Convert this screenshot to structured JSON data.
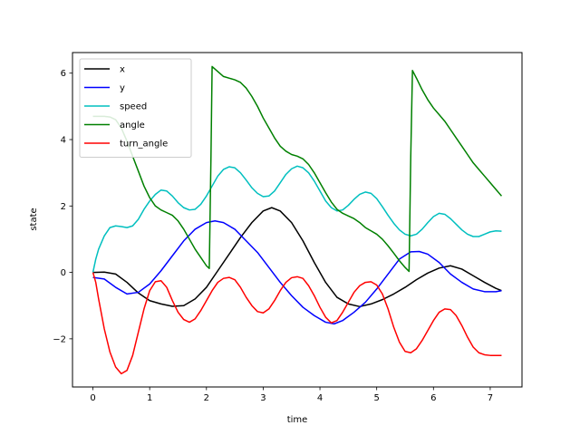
{
  "chart_data": {
    "type": "line",
    "xlabel": "time",
    "ylabel": "state",
    "xlim": [
      -0.36,
      7.56
    ],
    "ylim": [
      -3.45,
      6.62
    ],
    "xticks": [
      0,
      1,
      2,
      3,
      4,
      5,
      6,
      7
    ],
    "yticks": [
      -2,
      0,
      2,
      4,
      6
    ],
    "xtick_labels": [
      "0",
      "1",
      "2",
      "3",
      "4",
      "5",
      "6",
      "7"
    ],
    "ytick_labels": [
      "−2",
      "0",
      "2",
      "4",
      "6"
    ],
    "legend_position": "top-left",
    "series": [
      {
        "name": "x",
        "color": "#000000",
        "points": [
          [
            0,
            0
          ],
          [
            0.2,
            0.01
          ],
          [
            0.4,
            -0.05
          ],
          [
            0.6,
            -0.3
          ],
          [
            0.8,
            -0.62
          ],
          [
            1.0,
            -0.85
          ],
          [
            1.2,
            -0.95
          ],
          [
            1.4,
            -1.02
          ],
          [
            1.6,
            -1.0
          ],
          [
            1.8,
            -0.8
          ],
          [
            2.0,
            -0.45
          ],
          [
            2.2,
            0.05
          ],
          [
            2.4,
            0.55
          ],
          [
            2.6,
            1.05
          ],
          [
            2.8,
            1.5
          ],
          [
            3.0,
            1.85
          ],
          [
            3.15,
            1.95
          ],
          [
            3.3,
            1.85
          ],
          [
            3.5,
            1.5
          ],
          [
            3.7,
            0.95
          ],
          [
            3.9,
            0.3
          ],
          [
            4.1,
            -0.3
          ],
          [
            4.3,
            -0.75
          ],
          [
            4.5,
            -0.95
          ],
          [
            4.7,
            -1.03
          ],
          [
            4.9,
            -0.95
          ],
          [
            5.1,
            -0.82
          ],
          [
            5.3,
            -0.65
          ],
          [
            5.5,
            -0.45
          ],
          [
            5.7,
            -0.22
          ],
          [
            5.9,
            -0.02
          ],
          [
            6.1,
            0.13
          ],
          [
            6.3,
            0.2
          ],
          [
            6.5,
            0.1
          ],
          [
            6.7,
            -0.1
          ],
          [
            6.9,
            -0.3
          ],
          [
            7.1,
            -0.48
          ],
          [
            7.2,
            -0.55
          ]
        ]
      },
      {
        "name": "y",
        "color": "#0000ff",
        "points": [
          [
            0,
            -0.15
          ],
          [
            0.2,
            -0.2
          ],
          [
            0.4,
            -0.45
          ],
          [
            0.6,
            -0.65
          ],
          [
            0.8,
            -0.6
          ],
          [
            1.0,
            -0.35
          ],
          [
            1.2,
            0.05
          ],
          [
            1.4,
            0.5
          ],
          [
            1.6,
            0.95
          ],
          [
            1.8,
            1.3
          ],
          [
            2.0,
            1.5
          ],
          [
            2.15,
            1.55
          ],
          [
            2.3,
            1.5
          ],
          [
            2.5,
            1.3
          ],
          [
            2.7,
            0.95
          ],
          [
            2.9,
            0.6
          ],
          [
            3.1,
            0.15
          ],
          [
            3.3,
            -0.3
          ],
          [
            3.5,
            -0.7
          ],
          [
            3.7,
            -1.05
          ],
          [
            3.9,
            -1.3
          ],
          [
            4.1,
            -1.5
          ],
          [
            4.25,
            -1.55
          ],
          [
            4.4,
            -1.45
          ],
          [
            4.6,
            -1.2
          ],
          [
            4.8,
            -0.9
          ],
          [
            5.0,
            -0.5
          ],
          [
            5.2,
            -0.05
          ],
          [
            5.4,
            0.4
          ],
          [
            5.6,
            0.62
          ],
          [
            5.75,
            0.63
          ],
          [
            5.9,
            0.55
          ],
          [
            6.1,
            0.3
          ],
          [
            6.3,
            -0.05
          ],
          [
            6.5,
            -0.3
          ],
          [
            6.7,
            -0.5
          ],
          [
            6.9,
            -0.58
          ],
          [
            7.1,
            -0.58
          ],
          [
            7.2,
            -0.55
          ]
        ]
      },
      {
        "name": "speed",
        "color": "#00bfbf",
        "points": [
          [
            0,
            0
          ],
          [
            0.05,
            0.4
          ],
          [
            0.1,
            0.7
          ],
          [
            0.2,
            1.1
          ],
          [
            0.3,
            1.35
          ],
          [
            0.4,
            1.4
          ],
          [
            0.5,
            1.38
          ],
          [
            0.6,
            1.35
          ],
          [
            0.7,
            1.4
          ],
          [
            0.8,
            1.6
          ],
          [
            0.9,
            1.9
          ],
          [
            1.0,
            2.15
          ],
          [
            1.1,
            2.35
          ],
          [
            1.2,
            2.48
          ],
          [
            1.3,
            2.45
          ],
          [
            1.4,
            2.3
          ],
          [
            1.5,
            2.1
          ],
          [
            1.6,
            1.95
          ],
          [
            1.7,
            1.88
          ],
          [
            1.8,
            1.9
          ],
          [
            1.9,
            2.05
          ],
          [
            2.0,
            2.3
          ],
          [
            2.1,
            2.6
          ],
          [
            2.2,
            2.9
          ],
          [
            2.3,
            3.1
          ],
          [
            2.4,
            3.18
          ],
          [
            2.5,
            3.15
          ],
          [
            2.6,
            3.0
          ],
          [
            2.7,
            2.78
          ],
          [
            2.8,
            2.55
          ],
          [
            2.9,
            2.38
          ],
          [
            3.0,
            2.28
          ],
          [
            3.1,
            2.3
          ],
          [
            3.2,
            2.45
          ],
          [
            3.3,
            2.7
          ],
          [
            3.4,
            2.95
          ],
          [
            3.5,
            3.12
          ],
          [
            3.6,
            3.2
          ],
          [
            3.7,
            3.15
          ],
          [
            3.8,
            3.0
          ],
          [
            3.9,
            2.75
          ],
          [
            4.0,
            2.45
          ],
          [
            4.1,
            2.15
          ],
          [
            4.2,
            1.95
          ],
          [
            4.3,
            1.85
          ],
          [
            4.4,
            1.88
          ],
          [
            4.5,
            2.02
          ],
          [
            4.6,
            2.2
          ],
          [
            4.7,
            2.35
          ],
          [
            4.8,
            2.42
          ],
          [
            4.9,
            2.38
          ],
          [
            5.0,
            2.22
          ],
          [
            5.1,
            1.98
          ],
          [
            5.2,
            1.72
          ],
          [
            5.3,
            1.48
          ],
          [
            5.4,
            1.28
          ],
          [
            5.5,
            1.15
          ],
          [
            5.6,
            1.1
          ],
          [
            5.7,
            1.15
          ],
          [
            5.8,
            1.3
          ],
          [
            5.9,
            1.5
          ],
          [
            6.0,
            1.68
          ],
          [
            6.1,
            1.78
          ],
          [
            6.2,
            1.75
          ],
          [
            6.3,
            1.62
          ],
          [
            6.4,
            1.45
          ],
          [
            6.5,
            1.28
          ],
          [
            6.6,
            1.15
          ],
          [
            6.7,
            1.08
          ],
          [
            6.8,
            1.08
          ],
          [
            6.9,
            1.15
          ],
          [
            7.0,
            1.22
          ],
          [
            7.1,
            1.25
          ],
          [
            7.2,
            1.24
          ]
        ]
      },
      {
        "name": "angle",
        "color": "#008000",
        "points": [
          [
            0,
            4.7
          ],
          [
            0.2,
            4.7
          ],
          [
            0.3,
            4.68
          ],
          [
            0.4,
            4.6
          ],
          [
            0.5,
            4.35
          ],
          [
            0.6,
            3.95
          ],
          [
            0.7,
            3.5
          ],
          [
            0.8,
            3.05
          ],
          [
            0.9,
            2.6
          ],
          [
            1.0,
            2.25
          ],
          [
            1.1,
            2.0
          ],
          [
            1.2,
            1.88
          ],
          [
            1.3,
            1.8
          ],
          [
            1.4,
            1.72
          ],
          [
            1.5,
            1.55
          ],
          [
            1.6,
            1.3
          ],
          [
            1.7,
            1.0
          ],
          [
            1.8,
            0.7
          ],
          [
            1.9,
            0.45
          ],
          [
            2.0,
            0.2
          ],
          [
            2.05,
            0.12
          ],
          [
            2.08,
            3.5
          ],
          [
            2.1,
            6.2
          ],
          [
            2.2,
            6.05
          ],
          [
            2.3,
            5.9
          ],
          [
            2.5,
            5.8
          ],
          [
            2.6,
            5.72
          ],
          [
            2.7,
            5.55
          ],
          [
            2.8,
            5.3
          ],
          [
            2.9,
            5.0
          ],
          [
            3.0,
            4.65
          ],
          [
            3.1,
            4.35
          ],
          [
            3.2,
            4.05
          ],
          [
            3.3,
            3.8
          ],
          [
            3.4,
            3.65
          ],
          [
            3.5,
            3.55
          ],
          [
            3.6,
            3.5
          ],
          [
            3.7,
            3.42
          ],
          [
            3.8,
            3.25
          ],
          [
            3.9,
            3.0
          ],
          [
            4.0,
            2.7
          ],
          [
            4.1,
            2.4
          ],
          [
            4.2,
            2.12
          ],
          [
            4.3,
            1.9
          ],
          [
            4.4,
            1.78
          ],
          [
            4.5,
            1.7
          ],
          [
            4.6,
            1.62
          ],
          [
            4.7,
            1.5
          ],
          [
            4.8,
            1.35
          ],
          [
            4.9,
            1.25
          ],
          [
            5.0,
            1.15
          ],
          [
            5.1,
            1.0
          ],
          [
            5.2,
            0.8
          ],
          [
            5.3,
            0.58
          ],
          [
            5.4,
            0.35
          ],
          [
            5.5,
            0.15
          ],
          [
            5.57,
            0.03
          ],
          [
            5.6,
            3.5
          ],
          [
            5.63,
            6.08
          ],
          [
            5.7,
            5.85
          ],
          [
            5.8,
            5.5
          ],
          [
            5.9,
            5.2
          ],
          [
            6.0,
            4.95
          ],
          [
            6.1,
            4.75
          ],
          [
            6.2,
            4.55
          ],
          [
            6.3,
            4.3
          ],
          [
            6.4,
            4.05
          ],
          [
            6.5,
            3.8
          ],
          [
            6.6,
            3.55
          ],
          [
            6.7,
            3.3
          ],
          [
            6.8,
            3.1
          ],
          [
            6.9,
            2.9
          ],
          [
            7.0,
            2.7
          ],
          [
            7.1,
            2.5
          ],
          [
            7.2,
            2.3
          ]
        ]
      },
      {
        "name": "turn_angle",
        "color": "#ff0000",
        "points": [
          [
            0,
            0
          ],
          [
            0.05,
            -0.3
          ],
          [
            0.1,
            -0.8
          ],
          [
            0.2,
            -1.7
          ],
          [
            0.3,
            -2.4
          ],
          [
            0.4,
            -2.85
          ],
          [
            0.5,
            -3.05
          ],
          [
            0.6,
            -2.95
          ],
          [
            0.7,
            -2.5
          ],
          [
            0.8,
            -1.8
          ],
          [
            0.9,
            -1.1
          ],
          [
            1.0,
            -0.55
          ],
          [
            1.1,
            -0.28
          ],
          [
            1.2,
            -0.25
          ],
          [
            1.3,
            -0.45
          ],
          [
            1.4,
            -0.85
          ],
          [
            1.5,
            -1.2
          ],
          [
            1.6,
            -1.42
          ],
          [
            1.7,
            -1.5
          ],
          [
            1.8,
            -1.4
          ],
          [
            1.9,
            -1.15
          ],
          [
            2.0,
            -0.85
          ],
          [
            2.1,
            -0.55
          ],
          [
            2.2,
            -0.3
          ],
          [
            2.3,
            -0.18
          ],
          [
            2.4,
            -0.15
          ],
          [
            2.5,
            -0.22
          ],
          [
            2.6,
            -0.45
          ],
          [
            2.7,
            -0.75
          ],
          [
            2.8,
            -1.0
          ],
          [
            2.9,
            -1.18
          ],
          [
            3.0,
            -1.22
          ],
          [
            3.1,
            -1.1
          ],
          [
            3.2,
            -0.85
          ],
          [
            3.3,
            -0.55
          ],
          [
            3.4,
            -0.3
          ],
          [
            3.5,
            -0.16
          ],
          [
            3.6,
            -0.13
          ],
          [
            3.7,
            -0.18
          ],
          [
            3.8,
            -0.4
          ],
          [
            3.9,
            -0.7
          ],
          [
            4.0,
            -1.05
          ],
          [
            4.1,
            -1.35
          ],
          [
            4.2,
            -1.52
          ],
          [
            4.3,
            -1.45
          ],
          [
            4.4,
            -1.2
          ],
          [
            4.5,
            -0.9
          ],
          [
            4.6,
            -0.6
          ],
          [
            4.7,
            -0.4
          ],
          [
            4.8,
            -0.3
          ],
          [
            4.9,
            -0.28
          ],
          [
            5.0,
            -0.38
          ],
          [
            5.1,
            -0.65
          ],
          [
            5.2,
            -1.1
          ],
          [
            5.3,
            -1.65
          ],
          [
            5.4,
            -2.1
          ],
          [
            5.5,
            -2.38
          ],
          [
            5.6,
            -2.42
          ],
          [
            5.7,
            -2.3
          ],
          [
            5.8,
            -2.05
          ],
          [
            5.9,
            -1.75
          ],
          [
            6.0,
            -1.45
          ],
          [
            6.1,
            -1.2
          ],
          [
            6.2,
            -1.1
          ],
          [
            6.3,
            -1.12
          ],
          [
            6.4,
            -1.3
          ],
          [
            6.5,
            -1.6
          ],
          [
            6.6,
            -1.95
          ],
          [
            6.7,
            -2.25
          ],
          [
            6.8,
            -2.42
          ],
          [
            6.9,
            -2.48
          ],
          [
            7.0,
            -2.5
          ],
          [
            7.1,
            -2.5
          ],
          [
            7.2,
            -2.5
          ]
        ]
      }
    ]
  }
}
